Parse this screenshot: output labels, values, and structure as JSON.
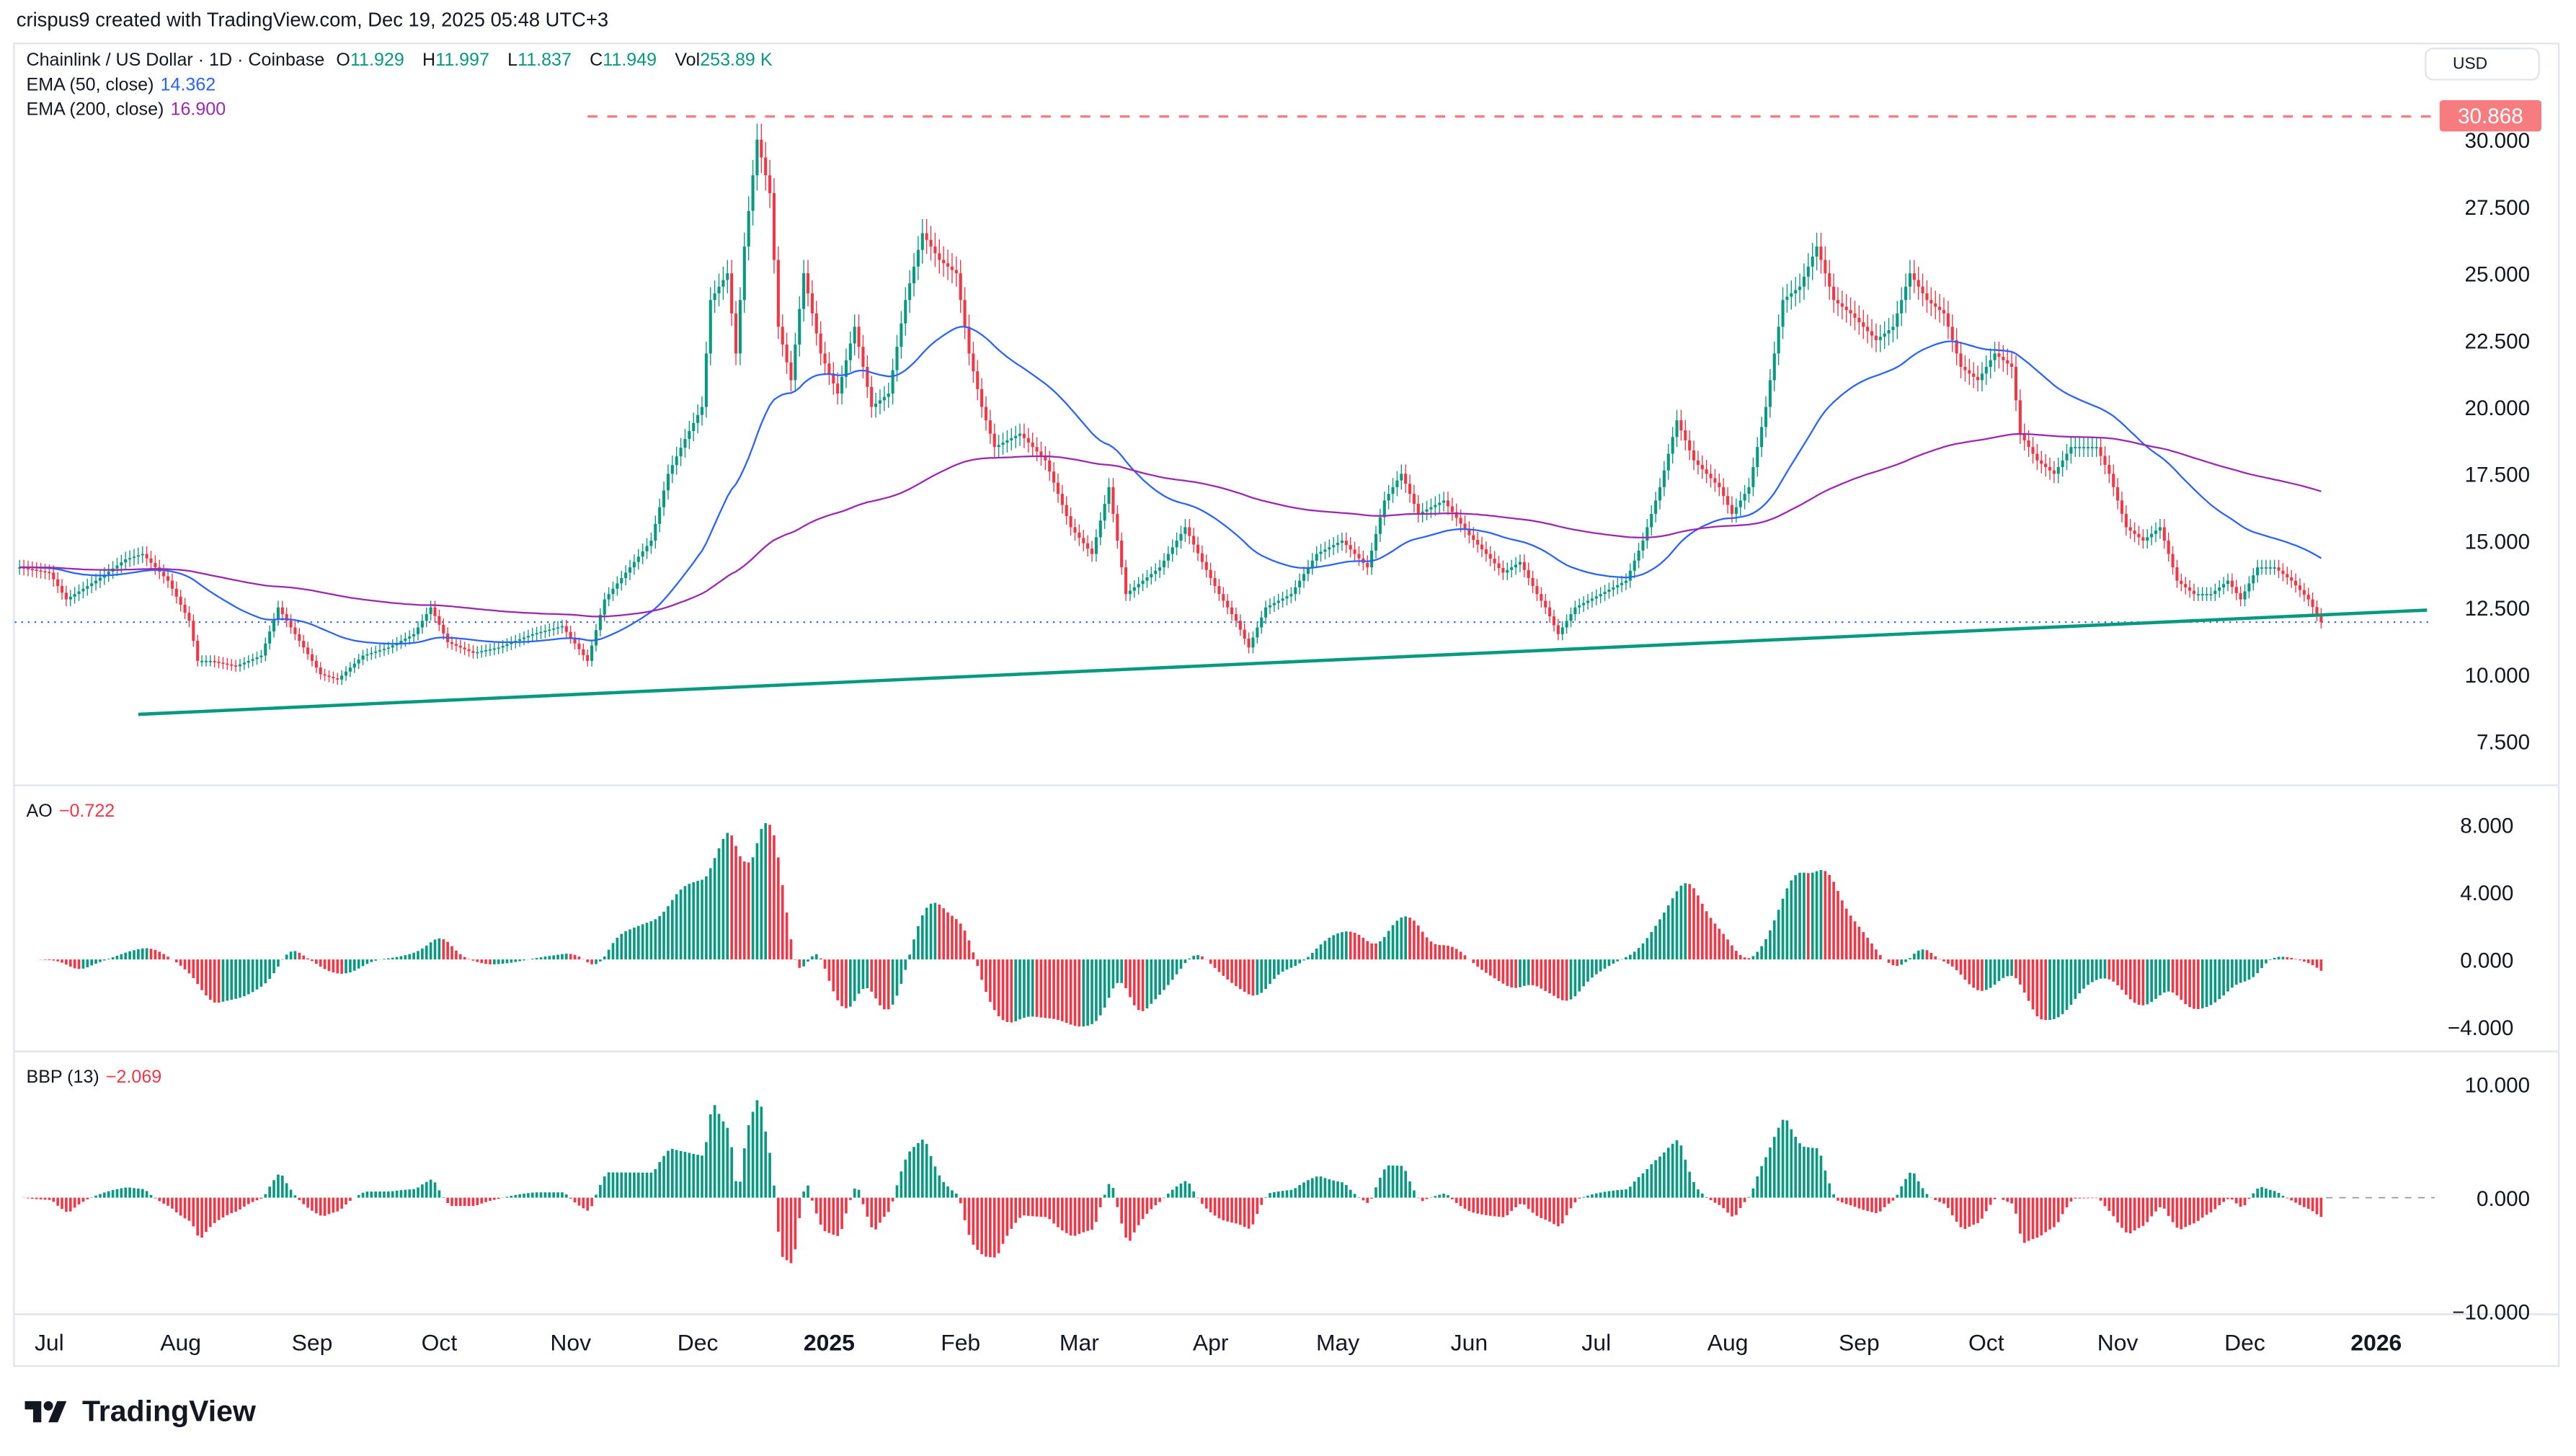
{
  "header": {
    "credit": "crispus9 created with TradingView.com, Dec 19, 2025 05:48 UTC+3"
  },
  "legend": {
    "symbol": "Chainlink / US Dollar · 1D · Coinbase",
    "open_label": "O",
    "open": "11.929",
    "high_label": "H",
    "high": "11.997",
    "low_label": "L",
    "low": "11.837",
    "close_label": "C",
    "close": "11.949",
    "vol_label": "Vol",
    "vol": "253.89 K",
    "ema50_label": "EMA (50, close)",
    "ema50": "14.362",
    "ema200_label": "EMA (200, close)",
    "ema200": "16.900",
    "ao_label": "AO",
    "ao": "−0.722",
    "bbp_label": "BBP (13)",
    "bbp": "−2.069"
  },
  "currency_button": "USD",
  "high_marker": "30.868",
  "footer": {
    "brand": "TradingView"
  },
  "colors": {
    "up": "#089981",
    "down": "#f23645",
    "ema50": "#2962ff",
    "ema200": "#9c27b0",
    "trendline": "#089981",
    "resistance": "#f77c80",
    "current_price_line": "#2962ff"
  },
  "chart_data": {
    "type": "candlestick",
    "symbol": "LINK/USD",
    "interval": "1D",
    "price_ticks": [
      "30.000",
      "27.500",
      "25.000",
      "22.500",
      "20.000",
      "17.500",
      "15.000",
      "12.500",
      "10.000",
      "7.500"
    ],
    "ao_ticks": [
      "8.000",
      "4.000",
      "0.000",
      "−4.000"
    ],
    "bbp_ticks": [
      "10.000",
      "0.000",
      "−10.000"
    ],
    "x_ticks": [
      {
        "label": "Jul",
        "date": "2024-07-01"
      },
      {
        "label": "Aug",
        "date": "2024-08-01"
      },
      {
        "label": "Sep",
        "date": "2024-09-01"
      },
      {
        "label": "Oct",
        "date": "2024-10-01"
      },
      {
        "label": "Nov",
        "date": "2024-11-01"
      },
      {
        "label": "Dec",
        "date": "2024-12-01"
      },
      {
        "label": "2025",
        "date": "2025-01-01",
        "bold": true
      },
      {
        "label": "Feb",
        "date": "2025-02-01"
      },
      {
        "label": "Mar",
        "date": "2025-03-01"
      },
      {
        "label": "Apr",
        "date": "2025-04-01"
      },
      {
        "label": "May",
        "date": "2025-05-01"
      },
      {
        "label": "Jun",
        "date": "2025-06-01"
      },
      {
        "label": "Jul",
        "date": "2025-07-01"
      },
      {
        "label": "Aug",
        "date": "2025-08-01"
      },
      {
        "label": "Sep",
        "date": "2025-09-01"
      },
      {
        "label": "Oct",
        "date": "2025-10-01"
      },
      {
        "label": "Nov",
        "date": "2025-11-01"
      },
      {
        "label": "Dec",
        "date": "2025-12-01"
      },
      {
        "label": "2026",
        "date": "2026-01-01",
        "bold": true
      }
    ],
    "resistance": {
      "price": 30.868,
      "from": "2024-11-05"
    },
    "current_price": 11.949,
    "trendline": [
      {
        "date": "2024-07-22",
        "price": 8.5
      },
      {
        "date": "2026-01-13",
        "price": 12.4
      }
    ],
    "closes": [
      [
        "2024-06-24",
        14.0
      ],
      [
        "2024-07-01",
        13.8
      ],
      [
        "2024-07-05",
        12.8
      ],
      [
        "2024-07-12",
        13.5
      ],
      [
        "2024-07-19",
        14.3
      ],
      [
        "2024-07-23",
        14.5
      ],
      [
        "2024-07-29",
        13.5
      ],
      [
        "2024-08-03",
        12.0
      ],
      [
        "2024-08-05",
        10.5
      ],
      [
        "2024-08-08",
        10.5
      ],
      [
        "2024-08-14",
        10.3
      ],
      [
        "2024-08-20",
        10.7
      ],
      [
        "2024-08-24",
        12.5
      ],
      [
        "2024-08-28",
        11.5
      ],
      [
        "2024-09-03",
        10.0
      ],
      [
        "2024-09-07",
        9.8
      ],
      [
        "2024-09-13",
        10.7
      ],
      [
        "2024-09-19",
        11.0
      ],
      [
        "2024-09-25",
        11.5
      ],
      [
        "2024-09-29",
        12.5
      ],
      [
        "2024-10-03",
        11.2
      ],
      [
        "2024-10-09",
        10.8
      ],
      [
        "2024-10-15",
        11.0
      ],
      [
        "2024-10-23",
        11.5
      ],
      [
        "2024-10-30",
        11.8
      ],
      [
        "2024-11-05",
        10.5
      ],
      [
        "2024-11-09",
        12.8
      ],
      [
        "2024-11-15",
        14.0
      ],
      [
        "2024-11-20",
        15.0
      ],
      [
        "2024-11-24",
        17.5
      ],
      [
        "2024-11-28",
        18.8
      ],
      [
        "2024-12-02",
        20.0
      ],
      [
        "2024-12-04",
        24.0
      ],
      [
        "2024-12-08",
        25.0
      ],
      [
        "2024-12-10",
        22.0
      ],
      [
        "2024-12-12",
        26.0
      ],
      [
        "2024-12-15",
        30.0
      ],
      [
        "2024-12-18",
        28.0
      ],
      [
        "2024-12-20",
        23.0
      ],
      [
        "2024-12-23",
        21.0
      ],
      [
        "2024-12-26",
        25.0
      ],
      [
        "2024-12-30",
        22.0
      ],
      [
        "2025-01-03",
        20.5
      ],
      [
        "2025-01-07",
        23.0
      ],
      [
        "2025-01-11",
        20.0
      ],
      [
        "2025-01-15",
        20.5
      ],
      [
        "2025-01-19",
        24.0
      ],
      [
        "2025-01-23",
        26.5
      ],
      [
        "2025-01-27",
        25.5
      ],
      [
        "2025-01-31",
        25.0
      ],
      [
        "2025-02-03",
        22.0
      ],
      [
        "2025-02-06",
        20.0
      ],
      [
        "2025-02-09",
        18.5
      ],
      [
        "2025-02-15",
        19.0
      ],
      [
        "2025-02-21",
        18.0
      ],
      [
        "2025-02-27",
        15.5
      ],
      [
        "2025-03-04",
        14.5
      ],
      [
        "2025-03-08",
        17.0
      ],
      [
        "2025-03-12",
        13.0
      ],
      [
        "2025-03-16",
        13.5
      ],
      [
        "2025-03-20",
        14.0
      ],
      [
        "2025-03-26",
        15.5
      ],
      [
        "2025-03-30",
        14.2
      ],
      [
        "2025-04-03",
        13.0
      ],
      [
        "2025-04-07",
        12.0
      ],
      [
        "2025-04-10",
        11.0
      ],
      [
        "2025-04-14",
        12.5
      ],
      [
        "2025-04-20",
        13.0
      ],
      [
        "2025-04-26",
        14.5
      ],
      [
        "2025-05-02",
        15.0
      ],
      [
        "2025-05-08",
        14.0
      ],
      [
        "2025-05-12",
        16.5
      ],
      [
        "2025-05-16",
        17.5
      ],
      [
        "2025-05-20",
        16.0
      ],
      [
        "2025-05-26",
        16.5
      ],
      [
        "2025-06-01",
        15.2
      ],
      [
        "2025-06-05",
        14.5
      ],
      [
        "2025-06-09",
        13.8
      ],
      [
        "2025-06-13",
        14.2
      ],
      [
        "2025-06-17",
        13.0
      ],
      [
        "2025-06-19",
        12.5
      ],
      [
        "2025-06-22",
        11.5
      ],
      [
        "2025-06-26",
        12.5
      ],
      [
        "2025-07-02",
        13.0
      ],
      [
        "2025-07-08",
        13.5
      ],
      [
        "2025-07-12",
        15.0
      ],
      [
        "2025-07-16",
        17.0
      ],
      [
        "2025-07-20",
        19.5
      ],
      [
        "2025-07-24",
        18.0
      ],
      [
        "2025-07-30",
        17.0
      ],
      [
        "2025-08-02",
        16.0
      ],
      [
        "2025-08-06",
        17.0
      ],
      [
        "2025-08-10",
        20.0
      ],
      [
        "2025-08-14",
        24.0
      ],
      [
        "2025-08-18",
        24.5
      ],
      [
        "2025-08-22",
        26.0
      ],
      [
        "2025-08-26",
        24.0
      ],
      [
        "2025-08-30",
        23.5
      ],
      [
        "2025-09-05",
        22.5
      ],
      [
        "2025-09-09",
        23.0
      ],
      [
        "2025-09-13",
        25.0
      ],
      [
        "2025-09-17",
        24.0
      ],
      [
        "2025-09-21",
        23.5
      ],
      [
        "2025-09-25",
        21.5
      ],
      [
        "2025-09-29",
        21.0
      ],
      [
        "2025-10-03",
        22.0
      ],
      [
        "2025-10-07",
        21.5
      ],
      [
        "2025-10-09",
        19.0
      ],
      [
        "2025-10-13",
        18.0
      ],
      [
        "2025-10-17",
        17.5
      ],
      [
        "2025-10-21",
        18.5
      ],
      [
        "2025-10-27",
        18.5
      ],
      [
        "2025-10-30",
        17.5
      ],
      [
        "2025-11-03",
        15.5
      ],
      [
        "2025-11-07",
        15.0
      ],
      [
        "2025-11-11",
        15.5
      ],
      [
        "2025-11-15",
        13.5
      ],
      [
        "2025-11-19",
        13.0
      ],
      [
        "2025-11-23",
        13.0
      ],
      [
        "2025-11-27",
        13.5
      ],
      [
        "2025-11-30",
        12.8
      ],
      [
        "2025-12-04",
        14.0
      ],
      [
        "2025-12-08",
        14.0
      ],
      [
        "2025-12-12",
        13.5
      ],
      [
        "2025-12-16",
        12.8
      ],
      [
        "2025-12-19",
        11.949
      ]
    ]
  }
}
